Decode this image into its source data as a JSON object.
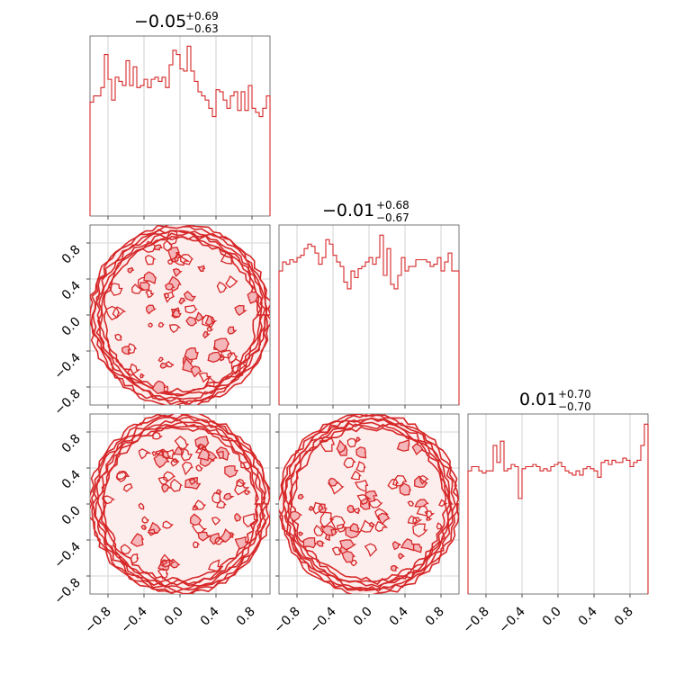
{
  "chart_data": {
    "type": "corner",
    "color": "#d62728",
    "fill_color": "#f4b6b9",
    "axis_range": [
      -1.0,
      1.0
    ],
    "ticks": [
      -0.8,
      -0.4,
      0.0,
      0.4,
      0.8
    ],
    "tick_labels": [
      "−0.8",
      "−0.4",
      "0.0",
      "0.4",
      "0.8"
    ],
    "grid": true,
    "parameters": [
      {
        "median": "−0.05",
        "upper": "+0.69",
        "lower": "−0.63"
      },
      {
        "median": "−0.01",
        "upper": "+0.68",
        "lower": "−0.67"
      },
      {
        "median": "0.01",
        "upper": "+0.70",
        "lower": "−0.70"
      }
    ],
    "histograms": [
      {
        "panel": "1,1",
        "bins": 50,
        "counts": [
          55,
          58,
          58,
          62,
          78,
          66,
          56,
          67,
          65,
          63,
          75,
          63,
          72,
          62,
          63,
          66,
          62,
          66,
          67,
          65,
          67,
          62,
          73,
          80,
          78,
          71,
          70,
          82,
          70,
          65,
          60,
          58,
          56,
          52,
          48,
          61,
          60,
          56,
          52,
          58,
          60,
          51,
          60,
          51,
          63,
          52,
          50,
          48,
          52,
          58
        ]
      },
      {
        "panel": "2,2",
        "bins": 50,
        "counts": [
          60,
          64,
          63,
          65,
          64,
          66,
          67,
          70,
          72,
          71,
          68,
          63,
          66,
          74,
          72,
          67,
          64,
          62,
          55,
          52,
          60,
          57,
          61,
          62,
          64,
          66,
          63,
          66,
          76,
          58,
          70,
          54,
          52,
          58,
          66,
          60,
          62,
          62,
          65,
          65,
          65,
          64,
          62,
          63,
          66,
          60,
          64,
          68,
          60,
          60
        ]
      },
      {
        "panel": "3,3",
        "bins": 50,
        "counts": [
          58,
          60,
          60,
          58,
          57,
          58,
          58,
          70,
          62,
          72,
          58,
          59,
          61,
          60,
          45,
          59,
          60,
          60,
          61,
          60,
          58,
          59,
          58,
          60,
          61,
          62,
          60,
          58,
          57,
          56,
          58,
          56,
          59,
          60,
          59,
          58,
          55,
          62,
          63,
          61,
          63,
          62,
          62,
          64,
          63,
          60,
          62,
          63,
          70,
          80
        ]
      }
    ],
    "contours": [
      {
        "panel": "2,1",
        "shape": "disc",
        "radius": 1.0
      },
      {
        "panel": "3,1",
        "shape": "disc",
        "radius": 1.0
      },
      {
        "panel": "3,2",
        "shape": "disc",
        "radius": 1.0
      }
    ]
  }
}
